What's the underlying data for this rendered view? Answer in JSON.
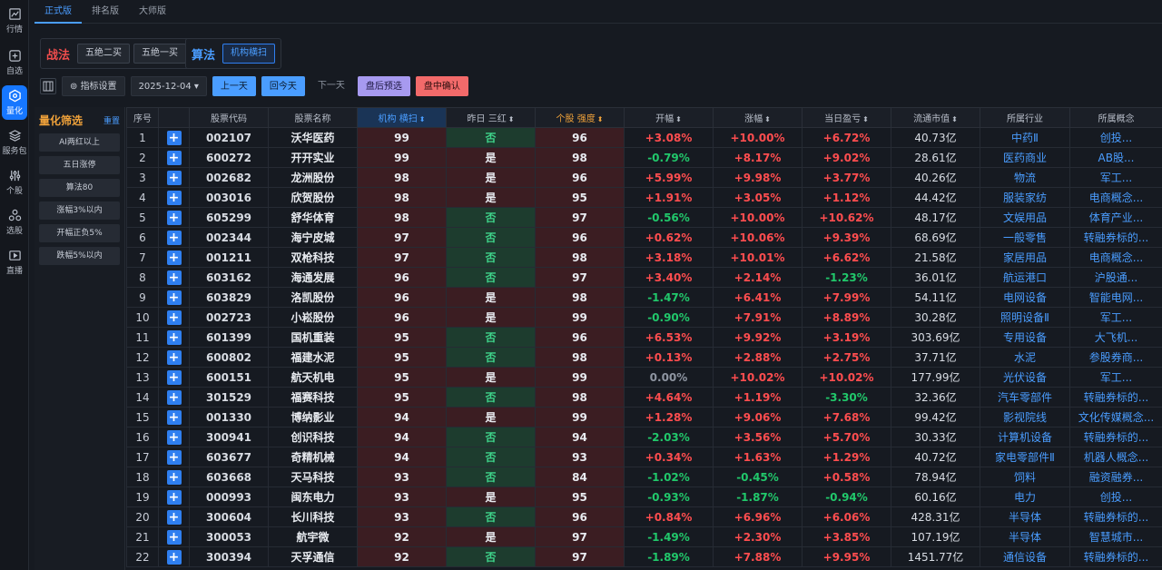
{
  "rail": [
    {
      "label": "行情",
      "icon": "chart-icon"
    },
    {
      "label": "自选",
      "icon": "add-square-icon"
    },
    {
      "label": "量化",
      "icon": "cube-icon",
      "active": true
    },
    {
      "label": "服务包",
      "icon": "layers-icon"
    },
    {
      "label": "个股",
      "icon": "sliders-icon"
    },
    {
      "label": "选股",
      "icon": "nodes-icon"
    },
    {
      "label": "直播",
      "icon": "video-icon"
    }
  ],
  "tabs": [
    "正式版",
    "排名版",
    "大师版"
  ],
  "zhanfa": {
    "title": "战法",
    "chips": [
      "五绝二买",
      "五绝一买"
    ]
  },
  "suanfa": {
    "title": "算法",
    "chip": "机构横扫"
  },
  "toolbar": {
    "indicator_settings": "指标设置",
    "date": "2025-12-04",
    "prev_day": "上一天",
    "today": "回今天",
    "next_day": "下一天",
    "after_close": "盘后预选",
    "intraday": "盘中确认"
  },
  "filter": {
    "title": "量化筛选",
    "reset": "重置",
    "items": [
      "AI两红以上",
      "五日涨停",
      "算法80",
      "涨幅3%以内",
      "开幅正负5%",
      "跌幅5%以内"
    ]
  },
  "table": {
    "headers": [
      "序号",
      "",
      "股票代码",
      "股票名称",
      "机构 横扫",
      "昨日 三红",
      "个股 强度",
      "开幅",
      "涨幅",
      "当日盈亏",
      "流通市值",
      "所属行业",
      "所属概念"
    ],
    "rows": [
      [
        "1",
        "002107",
        "沃华医药",
        "99",
        "否",
        "96",
        "+3.08%",
        "+10.00%",
        "+6.72%",
        "40.73亿",
        "中药Ⅱ",
        "创投..."
      ],
      [
        "2",
        "600272",
        "开开实业",
        "99",
        "是",
        "98",
        "-0.79%",
        "+8.17%",
        "+9.02%",
        "28.61亿",
        "医药商业",
        "AB股..."
      ],
      [
        "3",
        "002682",
        "龙洲股份",
        "98",
        "是",
        "96",
        "+5.99%",
        "+9.98%",
        "+3.77%",
        "40.26亿",
        "物流",
        "军工..."
      ],
      [
        "4",
        "003016",
        "欣贺股份",
        "98",
        "是",
        "95",
        "+1.91%",
        "+3.05%",
        "+1.12%",
        "44.42亿",
        "服装家纺",
        "电商概念..."
      ],
      [
        "5",
        "605299",
        "舒华体育",
        "98",
        "否",
        "97",
        "-0.56%",
        "+10.00%",
        "+10.62%",
        "48.17亿",
        "文娱用品",
        "体育产业..."
      ],
      [
        "6",
        "002344",
        "海宁皮城",
        "97",
        "否",
        "96",
        "+0.62%",
        "+10.06%",
        "+9.39%",
        "68.69亿",
        "一般零售",
        "转融券标的..."
      ],
      [
        "7",
        "001211",
        "双枪科技",
        "97",
        "否",
        "98",
        "+3.18%",
        "+10.01%",
        "+6.62%",
        "21.58亿",
        "家居用品",
        "电商概念..."
      ],
      [
        "8",
        "603162",
        "海通发展",
        "96",
        "否",
        "97",
        "+3.40%",
        "+2.14%",
        "-1.23%",
        "36.01亿",
        "航运港口",
        "沪股通..."
      ],
      [
        "9",
        "603829",
        "洛凯股份",
        "96",
        "是",
        "98",
        "-1.47%",
        "+6.41%",
        "+7.99%",
        "54.11亿",
        "电网设备",
        "智能电网..."
      ],
      [
        "10",
        "002723",
        "小崧股份",
        "96",
        "是",
        "99",
        "-0.90%",
        "+7.91%",
        "+8.89%",
        "30.28亿",
        "照明设备Ⅱ",
        "军工..."
      ],
      [
        "11",
        "601399",
        "国机重装",
        "95",
        "否",
        "96",
        "+6.53%",
        "+9.92%",
        "+3.19%",
        "303.69亿",
        "专用设备",
        "大飞机..."
      ],
      [
        "12",
        "600802",
        "福建水泥",
        "95",
        "否",
        "98",
        "+0.13%",
        "+2.88%",
        "+2.75%",
        "37.71亿",
        "水泥",
        "参股券商..."
      ],
      [
        "13",
        "600151",
        "航天机电",
        "95",
        "是",
        "99",
        "0.00%",
        "+10.02%",
        "+10.02%",
        "177.99亿",
        "光伏设备",
        "军工..."
      ],
      [
        "14",
        "301529",
        "福赛科技",
        "95",
        "否",
        "98",
        "+4.64%",
        "+1.19%",
        "-3.30%",
        "32.36亿",
        "汽车零部件",
        "转融券标的..."
      ],
      [
        "15",
        "001330",
        "博纳影业",
        "94",
        "是",
        "99",
        "+1.28%",
        "+9.06%",
        "+7.68%",
        "99.42亿",
        "影视院线",
        "文化传媒概念..."
      ],
      [
        "16",
        "300941",
        "创识科技",
        "94",
        "否",
        "94",
        "-2.03%",
        "+3.56%",
        "+5.70%",
        "30.33亿",
        "计算机设备",
        "转融券标的..."
      ],
      [
        "17",
        "603677",
        "奇精机械",
        "94",
        "否",
        "93",
        "+0.34%",
        "+1.63%",
        "+1.29%",
        "40.72亿",
        "家电零部件Ⅱ",
        "机器人概念..."
      ],
      [
        "18",
        "603668",
        "天马科技",
        "93",
        "否",
        "84",
        "-1.02%",
        "-0.45%",
        "+0.58%",
        "78.94亿",
        "饲料",
        "融资融券..."
      ],
      [
        "19",
        "000993",
        "闽东电力",
        "93",
        "是",
        "95",
        "-0.93%",
        "-1.87%",
        "-0.94%",
        "60.16亿",
        "电力",
        "创投..."
      ],
      [
        "20",
        "300604",
        "长川科技",
        "93",
        "否",
        "96",
        "+0.84%",
        "+6.96%",
        "+6.06%",
        "428.31亿",
        "半导体",
        "转融券标的..."
      ],
      [
        "21",
        "300053",
        "航宇微",
        "92",
        "是",
        "97",
        "-1.49%",
        "+2.30%",
        "+3.85%",
        "107.19亿",
        "半导体",
        "智慧城市..."
      ],
      [
        "22",
        "300394",
        "天孚通信",
        "92",
        "否",
        "97",
        "-1.89%",
        "+7.88%",
        "+9.95%",
        "1451.77亿",
        "通信设备",
        "转融券标的..."
      ]
    ]
  }
}
